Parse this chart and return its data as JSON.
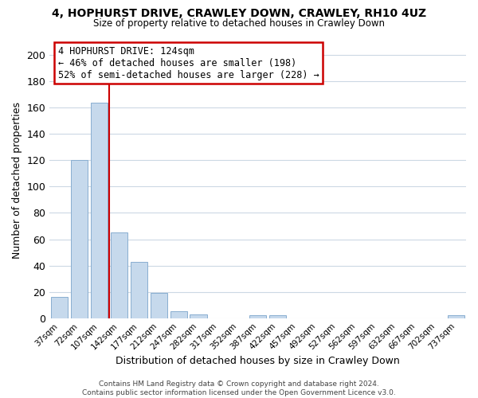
{
  "title": "4, HOPHURST DRIVE, CRAWLEY DOWN, CRAWLEY, RH10 4UZ",
  "subtitle": "Size of property relative to detached houses in Crawley Down",
  "xlabel": "Distribution of detached houses by size in Crawley Down",
  "ylabel": "Number of detached properties",
  "bar_color": "#c6d9ec",
  "bar_edge_color": "#89aed0",
  "bin_labels": [
    "37sqm",
    "72sqm",
    "107sqm",
    "142sqm",
    "177sqm",
    "212sqm",
    "247sqm",
    "282sqm",
    "317sqm",
    "352sqm",
    "387sqm",
    "422sqm",
    "457sqm",
    "492sqm",
    "527sqm",
    "562sqm",
    "597sqm",
    "632sqm",
    "667sqm",
    "702sqm",
    "737sqm"
  ],
  "bar_heights": [
    16,
    120,
    164,
    65,
    43,
    19,
    5,
    3,
    0,
    0,
    2,
    2,
    0,
    0,
    0,
    0,
    0,
    0,
    0,
    0,
    2
  ],
  "ylim": [
    0,
    210
  ],
  "yticks": [
    0,
    20,
    40,
    60,
    80,
    100,
    120,
    140,
    160,
    180,
    200
  ],
  "property_line_x": 2.5,
  "property_line_label": "4 HOPHURST DRIVE: 124sqm",
  "annotation_line1": "← 46% of detached houses are smaller (198)",
  "annotation_line2": "52% of semi-detached houses are larger (228) →",
  "annotation_box_color": "#ffffff",
  "annotation_box_edge_color": "#cc0000",
  "property_line_color": "#cc0000",
  "footer_line1": "Contains HM Land Registry data © Crown copyright and database right 2024.",
  "footer_line2": "Contains public sector information licensed under the Open Government Licence v3.0.",
  "background_color": "#ffffff",
  "grid_color": "#ccd8e4"
}
